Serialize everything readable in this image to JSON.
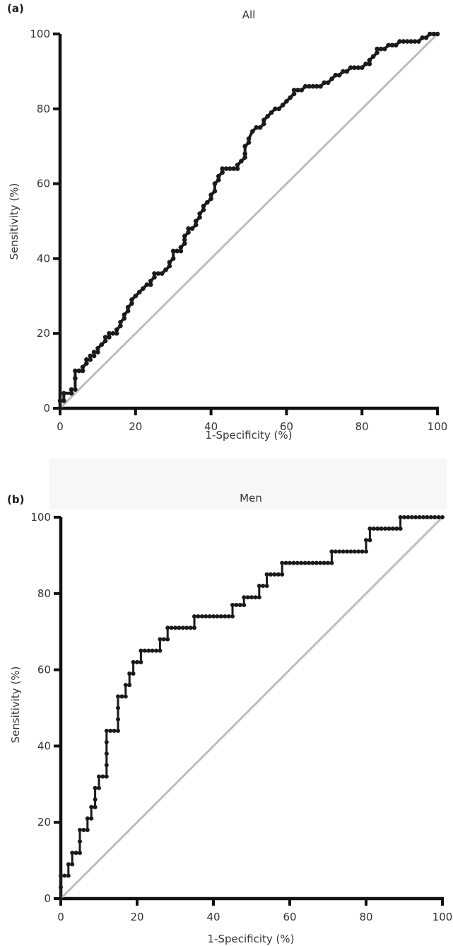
{
  "chart_data": [
    {
      "type": "line",
      "panel_label": "(a)",
      "title": "All",
      "xlabel": "1-Specificity (%)",
      "ylabel": "Sensitivity (%)",
      "xlim": [
        0,
        100
      ],
      "ylim": [
        0,
        100
      ],
      "x_ticks": [
        "0",
        "20",
        "40",
        "60",
        "80",
        "100"
      ],
      "y_ticks": [
        "0",
        "20",
        "40",
        "60",
        "80",
        "100"
      ],
      "grid": false,
      "colors": {
        "curve": "#1a1a1a",
        "reference": "#bdbdbd"
      },
      "series": [
        {
          "points": [
            [
              0,
              0
            ],
            [
              0,
              2
            ],
            [
              1,
              2
            ],
            [
              1,
              4
            ],
            [
              3,
              4
            ],
            [
              3,
              5
            ],
            [
              4,
              5
            ],
            [
              4,
              8
            ],
            [
              4,
              10
            ],
            [
              5,
              10
            ],
            [
              6,
              10
            ],
            [
              6,
              11
            ],
            [
              7,
              12
            ],
            [
              7,
              13
            ],
            [
              8,
              13
            ],
            [
              8,
              14
            ],
            [
              9,
              14
            ],
            [
              9,
              15
            ],
            [
              10,
              15
            ],
            [
              10,
              16
            ],
            [
              11,
              17
            ],
            [
              12,
              18
            ],
            [
              12,
              19
            ],
            [
              13,
              19
            ],
            [
              13,
              20
            ],
            [
              14,
              20
            ],
            [
              15,
              20
            ],
            [
              15,
              21
            ],
            [
              16,
              22
            ],
            [
              16,
              23
            ],
            [
              17,
              24
            ],
            [
              17,
              25
            ],
            [
              18,
              26
            ],
            [
              18,
              27
            ],
            [
              19,
              28
            ],
            [
              19,
              29
            ],
            [
              20,
              30
            ],
            [
              21,
              31
            ],
            [
              22,
              32
            ],
            [
              23,
              33
            ],
            [
              24,
              33
            ],
            [
              24,
              34
            ],
            [
              25,
              35
            ],
            [
              25,
              36
            ],
            [
              26,
              36
            ],
            [
              27,
              36
            ],
            [
              28,
              37
            ],
            [
              29,
              38
            ],
            [
              29,
              39
            ],
            [
              30,
              40
            ],
            [
              30,
              42
            ],
            [
              31,
              42
            ],
            [
              32,
              42
            ],
            [
              32,
              43
            ],
            [
              33,
              44
            ],
            [
              33,
              45
            ],
            [
              33,
              46
            ],
            [
              34,
              47
            ],
            [
              34,
              48
            ],
            [
              35,
              48
            ],
            [
              36,
              49
            ],
            [
              36,
              50
            ],
            [
              37,
              51
            ],
            [
              37,
              52
            ],
            [
              38,
              53
            ],
            [
              38,
              54
            ],
            [
              39,
              55
            ],
            [
              40,
              56
            ],
            [
              40,
              57
            ],
            [
              41,
              58
            ],
            [
              41,
              60
            ],
            [
              42,
              61
            ],
            [
              42,
              62
            ],
            [
              43,
              63
            ],
            [
              43,
              64
            ],
            [
              44,
              64
            ],
            [
              45,
              64
            ],
            [
              46,
              64
            ],
            [
              47,
              64
            ],
            [
              47,
              65
            ],
            [
              48,
              66
            ],
            [
              49,
              67
            ],
            [
              49,
              68
            ],
            [
              49,
              70
            ],
            [
              50,
              71
            ],
            [
              50,
              72
            ],
            [
              51,
              74
            ],
            [
              52,
              75
            ],
            [
              53,
              75
            ],
            [
              54,
              76
            ],
            [
              54,
              77
            ],
            [
              55,
              78
            ],
            [
              56,
              79
            ],
            [
              57,
              80
            ],
            [
              58,
              80
            ],
            [
              59,
              81
            ],
            [
              60,
              82
            ],
            [
              61,
              83
            ],
            [
              62,
              84
            ],
            [
              62,
              85
            ],
            [
              63,
              85
            ],
            [
              64,
              85
            ],
            [
              65,
              86
            ],
            [
              66,
              86
            ],
            [
              67,
              86
            ],
            [
              68,
              86
            ],
            [
              69,
              86
            ],
            [
              70,
              87
            ],
            [
              71,
              87
            ],
            [
              72,
              88
            ],
            [
              73,
              89
            ],
            [
              74,
              89
            ],
            [
              75,
              90
            ],
            [
              76,
              90
            ],
            [
              77,
              91
            ],
            [
              78,
              91
            ],
            [
              79,
              91
            ],
            [
              80,
              91
            ],
            [
              81,
              92
            ],
            [
              82,
              92
            ],
            [
              82,
              93
            ],
            [
              83,
              94
            ],
            [
              84,
              95
            ],
            [
              84,
              96
            ],
            [
              85,
              96
            ],
            [
              86,
              96
            ],
            [
              87,
              97
            ],
            [
              88,
              97
            ],
            [
              89,
              97
            ],
            [
              90,
              98
            ],
            [
              91,
              98
            ],
            [
              92,
              98
            ],
            [
              93,
              98
            ],
            [
              94,
              98
            ],
            [
              95,
              98
            ],
            [
              96,
              99
            ],
            [
              97,
              99
            ],
            [
              98,
              100
            ],
            [
              99,
              100
            ],
            [
              100,
              100
            ]
          ]
        },
        {
          "points": [
            [
              0,
              0
            ],
            [
              100,
              100
            ]
          ]
        }
      ]
    },
    {
      "type": "line",
      "panel_label": "(b)",
      "title": "Men",
      "xlabel": "1-Specificity (%)",
      "ylabel": "Sensitivity (%)",
      "xlim": [
        0,
        100
      ],
      "ylim": [
        0,
        100
      ],
      "x_ticks": [
        "0",
        "20",
        "40",
        "60",
        "80",
        "100"
      ],
      "y_ticks": [
        "0",
        "20",
        "40",
        "60",
        "80",
        "100"
      ],
      "grid": false,
      "colors": {
        "curve": "#1a1a1a",
        "reference": "#bdbdbd"
      },
      "series": [
        {
          "points": [
            [
              0,
              0
            ],
            [
              0,
              3
            ],
            [
              0,
              6
            ],
            [
              1,
              6
            ],
            [
              2,
              6
            ],
            [
              2,
              9
            ],
            [
              3,
              9
            ],
            [
              3,
              12
            ],
            [
              4,
              12
            ],
            [
              5,
              12
            ],
            [
              5,
              15
            ],
            [
              5,
              18
            ],
            [
              6,
              18
            ],
            [
              7,
              18
            ],
            [
              7,
              21
            ],
            [
              8,
              21
            ],
            [
              8,
              24
            ],
            [
              9,
              24
            ],
            [
              9,
              26
            ],
            [
              9,
              29
            ],
            [
              10,
              29
            ],
            [
              10,
              32
            ],
            [
              11,
              32
            ],
            [
              12,
              32
            ],
            [
              12,
              35
            ],
            [
              12,
              38
            ],
            [
              12,
              41
            ],
            [
              12,
              44
            ],
            [
              13,
              44
            ],
            [
              14,
              44
            ],
            [
              15,
              44
            ],
            [
              15,
              47
            ],
            [
              15,
              50
            ],
            [
              15,
              53
            ],
            [
              16,
              53
            ],
            [
              17,
              53
            ],
            [
              17,
              56
            ],
            [
              18,
              56
            ],
            [
              18,
              59
            ],
            [
              19,
              59
            ],
            [
              19,
              62
            ],
            [
              20,
              62
            ],
            [
              21,
              62
            ],
            [
              21,
              65
            ],
            [
              22,
              65
            ],
            [
              23,
              65
            ],
            [
              24,
              65
            ],
            [
              25,
              65
            ],
            [
              26,
              65
            ],
            [
              26,
              68
            ],
            [
              27,
              68
            ],
            [
              28,
              68
            ],
            [
              28,
              71
            ],
            [
              29,
              71
            ],
            [
              30,
              71
            ],
            [
              31,
              71
            ],
            [
              32,
              71
            ],
            [
              33,
              71
            ],
            [
              34,
              71
            ],
            [
              35,
              71
            ],
            [
              35,
              74
            ],
            [
              36,
              74
            ],
            [
              37,
              74
            ],
            [
              38,
              74
            ],
            [
              39,
              74
            ],
            [
              40,
              74
            ],
            [
              41,
              74
            ],
            [
              42,
              74
            ],
            [
              43,
              74
            ],
            [
              44,
              74
            ],
            [
              45,
              74
            ],
            [
              45,
              77
            ],
            [
              46,
              77
            ],
            [
              47,
              77
            ],
            [
              48,
              77
            ],
            [
              48,
              79
            ],
            [
              49,
              79
            ],
            [
              50,
              79
            ],
            [
              51,
              79
            ],
            [
              52,
              79
            ],
            [
              52,
              82
            ],
            [
              53,
              82
            ],
            [
              54,
              82
            ],
            [
              54,
              85
            ],
            [
              55,
              85
            ],
            [
              56,
              85
            ],
            [
              57,
              85
            ],
            [
              58,
              85
            ],
            [
              58,
              88
            ],
            [
              59,
              88
            ],
            [
              60,
              88
            ],
            [
              61,
              88
            ],
            [
              62,
              88
            ],
            [
              63,
              88
            ],
            [
              64,
              88
            ],
            [
              65,
              88
            ],
            [
              66,
              88
            ],
            [
              67,
              88
            ],
            [
              68,
              88
            ],
            [
              69,
              88
            ],
            [
              70,
              88
            ],
            [
              71,
              88
            ],
            [
              71,
              91
            ],
            [
              72,
              91
            ],
            [
              73,
              91
            ],
            [
              74,
              91
            ],
            [
              75,
              91
            ],
            [
              76,
              91
            ],
            [
              77,
              91
            ],
            [
              78,
              91
            ],
            [
              79,
              91
            ],
            [
              80,
              91
            ],
            [
              80,
              94
            ],
            [
              81,
              94
            ],
            [
              81,
              97
            ],
            [
              82,
              97
            ],
            [
              83,
              97
            ],
            [
              84,
              97
            ],
            [
              85,
              97
            ],
            [
              86,
              97
            ],
            [
              87,
              97
            ],
            [
              88,
              97
            ],
            [
              89,
              97
            ],
            [
              89,
              100
            ],
            [
              90,
              100
            ],
            [
              91,
              100
            ],
            [
              92,
              100
            ],
            [
              93,
              100
            ],
            [
              94,
              100
            ],
            [
              95,
              100
            ],
            [
              96,
              100
            ],
            [
              97,
              100
            ],
            [
              98,
              100
            ],
            [
              99,
              100
            ],
            [
              100,
              100
            ]
          ]
        },
        {
          "points": [
            [
              0,
              0
            ],
            [
              100,
              100
            ]
          ]
        }
      ]
    }
  ]
}
